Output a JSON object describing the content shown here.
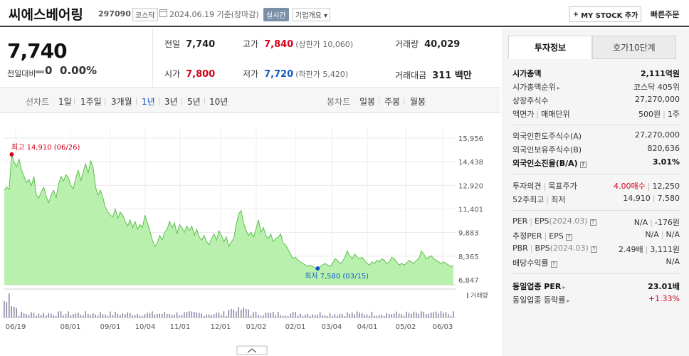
{
  "header": {
    "company_name": "씨에스베어링",
    "code": "297090",
    "market": "코스닥",
    "date": "2024.06.19",
    "date_note": "기준(장마감)",
    "realtime_label": "실시간",
    "overview_label": "기업개요",
    "overview_caret": "▾",
    "mystock_plus": "+",
    "mystock_label": "MY STOCK 추가",
    "quick_order_label": "빠른주문"
  },
  "price": {
    "current": "7,740",
    "change_label": "전일대비",
    "change": "0",
    "change_pct": "0.00%",
    "prev_close_label": "전일",
    "prev_close": "7,740",
    "high_label": "고가",
    "high": "7,840",
    "upper_limit_text": "(상한가 10,060)",
    "volume_label": "거래량",
    "volume": "40,029",
    "open_label": "시가",
    "open": "7,800",
    "low_label": "저가",
    "low": "7,720",
    "lower_limit_text": "(하한가 5,420)",
    "amount_label": "거래대금",
    "amount": "311 백만"
  },
  "tabs": {
    "line_group_label": "선차트",
    "line_periods": [
      "1일",
      "1주일",
      "3개월",
      "1년",
      "3년",
      "5년",
      "10년"
    ],
    "active_period": "1년",
    "candle_group_label": "봉차트",
    "candle_periods": [
      "일봉",
      "주봉",
      "월봉"
    ]
  },
  "right_panel": {
    "tabs": [
      "투자정보",
      "호가10단계"
    ],
    "active_tab": "투자정보",
    "q_icon": "?",
    "rows": {
      "market_cap_label": "시가총액",
      "market_cap": "2,111억원",
      "cap_rank_label": "시가총액순위",
      "cap_rank_caret": "▸",
      "cap_rank": "코스닥 405위",
      "shares_label": "상장주식수",
      "shares": "27,270,000",
      "par_label": "액면가",
      "unit_label": "매매단위",
      "par_value": "500원",
      "unit_value": "1주",
      "foreign_limit_label": "외국인한도주식수(A)",
      "foreign_limit": "27,270,000",
      "foreign_hold_label": "외국인보유주식수(B)",
      "foreign_hold": "820,636",
      "foreign_ratio_label": "외국인소진율(B/A)",
      "foreign_ratio": "3.01%",
      "opinion_label": "투자의견",
      "target_label": "목표주가",
      "opinion": "4.00매수",
      "target": "12,250",
      "week52_label": "52주최고",
      "week52_low_label": "최저",
      "week52_high": "14,910",
      "week52_low": "7,580",
      "per_label": "PER",
      "eps_label": "EPS",
      "eps_period": "(2024.03)",
      "per": "N/A",
      "eps": "-176원",
      "est_per_label": "추정PER",
      "est_eps_label": "EPS",
      "est_per": "N/A",
      "est_eps": "N/A",
      "pbr_label": "PBR",
      "bps_label": "BPS",
      "bps_period": "(2024.03)",
      "pbr": "2.49배",
      "bps": "3,111원",
      "div_label": "배당수익률",
      "div": "N/A",
      "sector_per_label": "동일업종 PER",
      "sector_per_caret": "▸",
      "sector_per": "23.01배",
      "sector_chg_label": "동일업종 등락률",
      "sector_chg_caret": "▸",
      "sector_chg": "+1.33%"
    }
  },
  "colors": {
    "up": "#d6001c",
    "down": "#1259c6",
    "area_fill": "#b9f0ae",
    "area_line": "#5fbf4c"
  },
  "chart_data": {
    "type": "area",
    "title": "",
    "ylim": [
      6847,
      15956
    ],
    "yticks": [
      15956,
      14438,
      12920,
      11401,
      9883,
      8365,
      6847
    ],
    "ytick_labels": [
      "15,956",
      "14,438",
      "12,920",
      "11,401",
      "9,883",
      "8,365",
      "6,847"
    ],
    "x_tick_labels": [
      "06/19",
      "08/01",
      "09/01",
      "10/04",
      "11/01",
      "12/01",
      "01/02",
      "02/01",
      "03/04",
      "04/01",
      "05/02",
      "06/03"
    ],
    "max_label": "최고 14,910 (06/26)",
    "min_label": "최저 7,580 (03/15)",
    "volume_legend": "거래량",
    "grid": true,
    "series": [
      {
        "values": [
          12600,
          12800,
          12650,
          14910,
          14400,
          14100,
          14600,
          13900,
          13500,
          13100,
          13300,
          12900,
          13500,
          12300,
          12100,
          12500,
          12800,
          12200,
          11800,
          12300,
          12600,
          12100,
          13000,
          13500,
          13200,
          13600,
          13400,
          12900,
          12700,
          13400,
          13900,
          13200,
          13800,
          14300,
          13700,
          14500,
          14100,
          12800,
          12300,
          12600,
          12100,
          11500,
          11200,
          11000,
          10900,
          11400,
          10800,
          11200,
          11000,
          10600,
          10300,
          10700,
          10200,
          10600,
          10100,
          10400,
          10200,
          11000,
          10500,
          10000,
          9400,
          9000,
          9200,
          9700,
          9400,
          9900,
          10100,
          10600,
          10200,
          10500,
          9800,
          10400,
          10200,
          9900,
          10300,
          10000,
          10300,
          9700,
          10100,
          9600,
          9400,
          9700,
          9300,
          9100,
          9500,
          9800,
          9400,
          10000,
          9700,
          9300,
          9600,
          9000,
          9300,
          9500,
          10400,
          11100,
          11300,
          10500,
          10000,
          9700,
          9900,
          9600,
          10100,
          10700,
          9900,
          10200,
          9700,
          9500,
          9800,
          9300,
          9500,
          9600,
          9800,
          9200,
          9100,
          8800,
          8500,
          8200,
          8300,
          8100,
          8000,
          7900,
          7800,
          7700,
          7800,
          7700,
          7600,
          7580,
          7700,
          7800,
          7900,
          7800,
          7700,
          7900,
          8200,
          8100,
          7900,
          8000,
          8300,
          8700,
          8400,
          8200,
          8500,
          8300,
          8200,
          8300,
          8100,
          7900,
          7800,
          8000,
          7900,
          8100,
          8000,
          8200,
          8100,
          7900,
          8000,
          8300,
          8200,
          8000,
          7800,
          7900,
          7800,
          7900,
          8100,
          8000,
          7900,
          8100,
          8200,
          8700,
          8500,
          8200,
          8300,
          8400,
          8200,
          8100,
          8000,
          7900,
          8000,
          7900,
          7800,
          7700,
          7740
        ]
      }
    ]
  }
}
